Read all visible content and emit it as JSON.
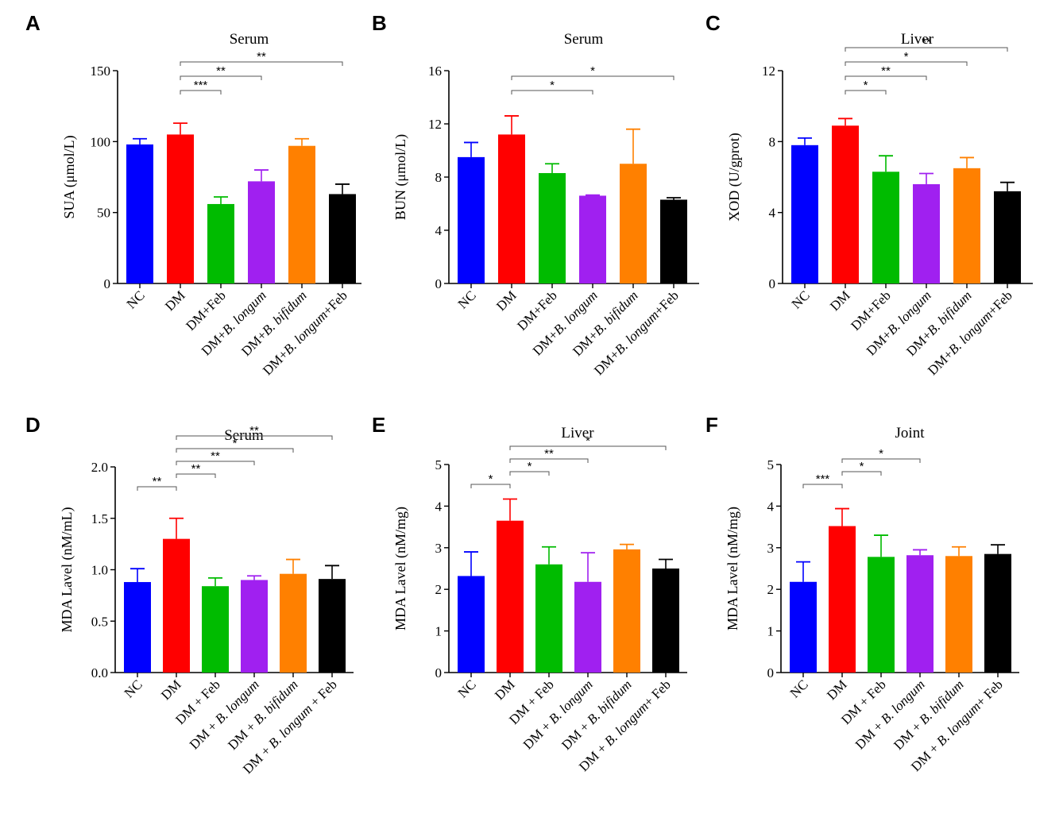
{
  "figure": {
    "colors": [
      "#0000ff",
      "#ff0000",
      "#00bb00",
      "#a020f0",
      "#ff8000",
      "#000000"
    ]
  },
  "chart_data": [
    {
      "panel": "A",
      "type": "bar",
      "title": "Serum",
      "ylabel": "SUA (μmol/L)",
      "ylim": [
        0,
        150
      ],
      "yticks": [
        "0",
        "50",
        "100",
        "150"
      ],
      "categories": [
        {
          "pre": "NC",
          "it": "",
          "post": ""
        },
        {
          "pre": "DM",
          "it": "",
          "post": ""
        },
        {
          "pre": "DM+Feb",
          "it": "",
          "post": ""
        },
        {
          "pre": "DM+",
          "it": "B. longum",
          "post": ""
        },
        {
          "pre": "DM+",
          "it": "B. bifidum",
          "post": ""
        },
        {
          "pre": "DM+",
          "it": "B. longum",
          "post": "+Feb"
        }
      ],
      "values": [
        98,
        105,
        56,
        72,
        97,
        63
      ],
      "errors": [
        4,
        8,
        5,
        8,
        5,
        7
      ],
      "sig": [
        {
          "from": 1,
          "to": 2,
          "label": "***"
        },
        {
          "from": 1,
          "to": 3,
          "label": "**"
        },
        {
          "from": 1,
          "to": 5,
          "label": "**"
        }
      ]
    },
    {
      "panel": "B",
      "type": "bar",
      "title": "Serum",
      "ylabel": "BUN (μmol/L)",
      "ylim": [
        0,
        16
      ],
      "yticks": [
        "0",
        "4",
        "8",
        "12",
        "16"
      ],
      "categories": [
        {
          "pre": "NC",
          "it": "",
          "post": ""
        },
        {
          "pre": "DM",
          "it": "",
          "post": ""
        },
        {
          "pre": "DM+Feb",
          "it": "",
          "post": ""
        },
        {
          "pre": "DM+",
          "it": "B. longum",
          "post": ""
        },
        {
          "pre": "DM+",
          "it": "B. bifidum",
          "post": ""
        },
        {
          "pre": "DM+",
          "it": "B. longum",
          "post": "+Feb"
        }
      ],
      "values": [
        9.5,
        11.2,
        8.3,
        6.6,
        9.0,
        6.3
      ],
      "errors": [
        1.1,
        1.4,
        0.7,
        0.05,
        2.6,
        0.15
      ],
      "sig": [
        {
          "from": 1,
          "to": 3,
          "label": "*"
        },
        {
          "from": 1,
          "to": 5,
          "label": "*"
        }
      ]
    },
    {
      "panel": "C",
      "type": "bar",
      "title": "Liver",
      "ylabel": "XOD (U/gprot)",
      "ylim": [
        0,
        12
      ],
      "yticks": [
        "0",
        "4",
        "8",
        "12"
      ],
      "categories": [
        {
          "pre": "NC",
          "it": "",
          "post": ""
        },
        {
          "pre": "DM",
          "it": "",
          "post": ""
        },
        {
          "pre": "DM+Feb",
          "it": "",
          "post": ""
        },
        {
          "pre": "DM+",
          "it": "B. longum",
          "post": ""
        },
        {
          "pre": "DM+",
          "it": "B. bifidum",
          "post": ""
        },
        {
          "pre": "DM+",
          "it": "B. longum",
          "post": "+Feb"
        }
      ],
      "values": [
        7.8,
        8.9,
        6.3,
        5.6,
        6.5,
        5.2
      ],
      "errors": [
        0.4,
        0.4,
        0.9,
        0.6,
        0.6,
        0.5
      ],
      "sig": [
        {
          "from": 1,
          "to": 2,
          "label": "*"
        },
        {
          "from": 1,
          "to": 3,
          "label": "**"
        },
        {
          "from": 1,
          "to": 4,
          "label": "*"
        },
        {
          "from": 1,
          "to": 5,
          "label": "**"
        }
      ]
    },
    {
      "panel": "D",
      "type": "bar",
      "title": "Serum",
      "ylabel": "MDA Lavel (nM/mL)",
      "ylim": [
        0,
        2.0
      ],
      "yticks": [
        "0.0",
        "0.5",
        "1.0",
        "1.5",
        "2.0"
      ],
      "categories": [
        {
          "pre": "NC",
          "it": "",
          "post": ""
        },
        {
          "pre": "DM",
          "it": "",
          "post": ""
        },
        {
          "pre": "DM + Feb",
          "it": "",
          "post": ""
        },
        {
          "pre": "DM + ",
          "it": "B. longum",
          "post": ""
        },
        {
          "pre": "DM + ",
          "it": "B. bifidum",
          "post": ""
        },
        {
          "pre": "DM + ",
          "it": "B. longum",
          "post": " + Feb"
        }
      ],
      "values": [
        0.88,
        1.3,
        0.84,
        0.9,
        0.96,
        0.91
      ],
      "errors": [
        0.13,
        0.2,
        0.08,
        0.04,
        0.14,
        0.13
      ],
      "sig": [
        {
          "from": 0,
          "to": 1,
          "label": "**"
        },
        {
          "from": 1,
          "to": 2,
          "label": "**"
        },
        {
          "from": 1,
          "to": 3,
          "label": "**"
        },
        {
          "from": 1,
          "to": 4,
          "label": "*"
        },
        {
          "from": 1,
          "to": 5,
          "label": "**"
        }
      ]
    },
    {
      "panel": "E",
      "type": "bar",
      "title": "Liver",
      "ylabel": "MDA Lavel (nM/mg)",
      "ylim": [
        0,
        5
      ],
      "yticks": [
        "0",
        "1",
        "2",
        "3",
        "4",
        "5"
      ],
      "categories": [
        {
          "pre": "NC",
          "it": "",
          "post": ""
        },
        {
          "pre": "DM",
          "it": "",
          "post": ""
        },
        {
          "pre": "DM + Feb",
          "it": "",
          "post": ""
        },
        {
          "pre": "DM + ",
          "it": "B. longum",
          "post": ""
        },
        {
          "pre": "DM + ",
          "it": "B. bifidum",
          "post": ""
        },
        {
          "pre": "DM + ",
          "it": "B. longum",
          "post": "+ Feb"
        }
      ],
      "values": [
        2.32,
        3.65,
        2.6,
        2.18,
        2.96,
        2.5
      ],
      "errors": [
        0.58,
        0.52,
        0.42,
        0.7,
        0.12,
        0.22
      ],
      "sig": [
        {
          "from": 0,
          "to": 1,
          "label": "*"
        },
        {
          "from": 1,
          "to": 2,
          "label": "*"
        },
        {
          "from": 1,
          "to": 3,
          "label": "**"
        },
        {
          "from": 1,
          "to": 5,
          "label": "*"
        }
      ]
    },
    {
      "panel": "F",
      "type": "bar",
      "title": "Joint",
      "ylabel": "MDA Lavel (nM/mg)",
      "ylim": [
        0,
        5
      ],
      "yticks": [
        "0",
        "1",
        "2",
        "3",
        "4",
        "5"
      ],
      "categories": [
        {
          "pre": "NC",
          "it": "",
          "post": ""
        },
        {
          "pre": "DM",
          "it": "",
          "post": ""
        },
        {
          "pre": "DM + Feb",
          "it": "",
          "post": ""
        },
        {
          "pre": "DM + ",
          "it": "B. longum",
          "post": ""
        },
        {
          "pre": "DM + ",
          "it": "B. bifidum",
          "post": ""
        },
        {
          "pre": "DM + ",
          "it": "B. longum",
          "post": "+ Feb"
        }
      ],
      "values": [
        2.18,
        3.52,
        2.78,
        2.82,
        2.8,
        2.85
      ],
      "errors": [
        0.48,
        0.42,
        0.52,
        0.13,
        0.22,
        0.22
      ],
      "sig": [
        {
          "from": 0,
          "to": 1,
          "label": "***"
        },
        {
          "from": 1,
          "to": 2,
          "label": "*"
        },
        {
          "from": 1,
          "to": 3,
          "label": "*"
        }
      ]
    }
  ]
}
